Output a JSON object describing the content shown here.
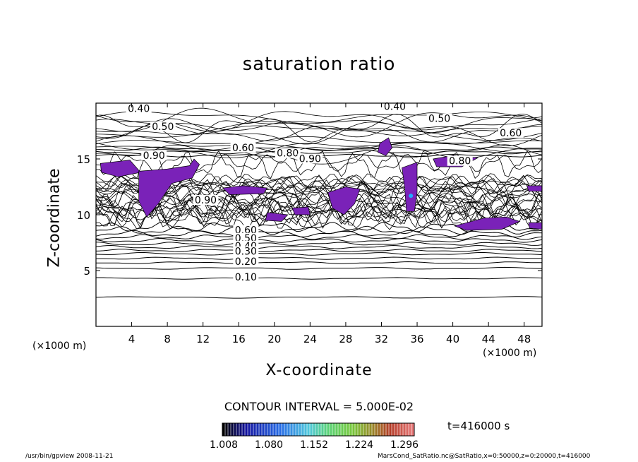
{
  "chart_data": {
    "type": "contour",
    "title": "saturation ratio",
    "xlabel": "X-coordinate",
    "ylabel": "Z-coordinate",
    "x_unit": "(×1000 m)",
    "xlim": [
      0,
      50
    ],
    "ylim": [
      0,
      20
    ],
    "xticks": [
      4,
      8,
      12,
      16,
      20,
      24,
      28,
      32,
      36,
      40,
      44,
      48
    ],
    "yticks": [
      5,
      10,
      15
    ],
    "contour_labels": [
      {
        "text": "0.40",
        "x": 4.8,
        "z": 19.4
      },
      {
        "text": "0.50",
        "x": 7.5,
        "z": 17.8
      },
      {
        "text": "0.90",
        "x": 6.5,
        "z": 15.2
      },
      {
        "text": "0.40",
        "x": 33.5,
        "z": 19.6
      },
      {
        "text": "0.50",
        "x": 38.5,
        "z": 18.5
      },
      {
        "text": "0.60",
        "x": 46.5,
        "z": 17.2
      },
      {
        "text": "0.60",
        "x": 16.5,
        "z": 15.9
      },
      {
        "text": "0.80",
        "x": 21.5,
        "z": 15.4
      },
      {
        "text": "0.90",
        "x": 24.0,
        "z": 14.9
      },
      {
        "text": "0.80",
        "x": 40.8,
        "z": 14.7
      },
      {
        "text": "0.90",
        "x": 12.3,
        "z": 11.2
      },
      {
        "text": "0.60",
        "x": 16.8,
        "z": 8.5
      },
      {
        "text": "0.50",
        "x": 16.8,
        "z": 7.8
      },
      {
        "text": "0.40",
        "x": 16.8,
        "z": 7.1
      },
      {
        "text": "0.30",
        "x": 16.8,
        "z": 6.6
      },
      {
        "text": "0.20",
        "x": 16.8,
        "z": 5.7
      },
      {
        "text": "0.10",
        "x": 16.8,
        "z": 4.3
      }
    ],
    "contour_interval": "CONTOUR INTERVAL = 5.000E-02",
    "colorbar_ticks": [
      "1.008",
      "1.080",
      "1.152",
      "1.224",
      "1.296"
    ],
    "colors": {
      "supersaturated": "#7a22b8",
      "peak": "#22aaff",
      "line": "#000000"
    }
  },
  "time_label": "t=416000 s",
  "footer_left": "/usr/bin/gpview   2008-11-21",
  "footer_right": "MarsCond_SatRatio.nc@SatRatio,x=0:50000,z=0:20000,t=416000"
}
